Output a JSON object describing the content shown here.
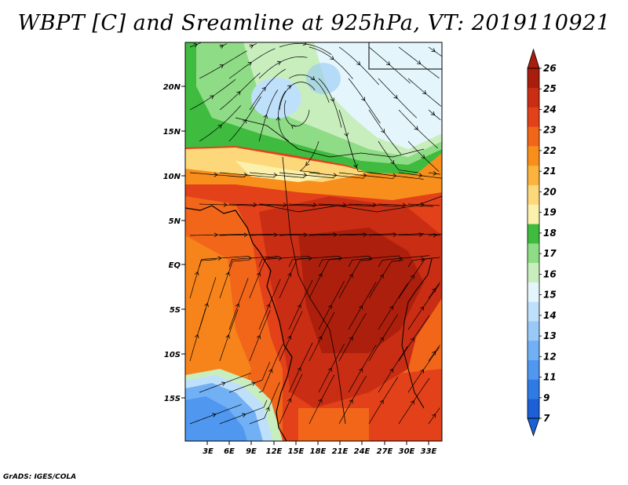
{
  "title": "WBPT [C] and Sreamline at 925hPa, VT: 2019110921",
  "footer": "GrADS: IGES/COLA",
  "map": {
    "lat_labels": [
      "20N",
      "15N",
      "10N",
      "5N",
      "EQ",
      "5S",
      "10S",
      "15S"
    ],
    "lon_labels": [
      "3E",
      "6E",
      "9E",
      "12E",
      "15E",
      "18E",
      "21E",
      "24E",
      "27E",
      "30E",
      "33E"
    ]
  },
  "colorbar": {
    "labels": [
      "7",
      "9",
      "11",
      "12",
      "13",
      "14",
      "15",
      "16",
      "17",
      "18",
      "19",
      "20",
      "21",
      "22",
      "23",
      "24",
      "25",
      "26"
    ],
    "colors": [
      "#1c5fd6",
      "#2f7be6",
      "#4f97ef",
      "#71b0f4",
      "#98c9f7",
      "#bfe0fa",
      "#e4f6fb",
      "#c9eebe",
      "#8fdc86",
      "#3fbb3f",
      "#fbf1ac",
      "#fcd87b",
      "#fbb33e",
      "#f88f1c",
      "#f2661a",
      "#e2411a",
      "#c92d14",
      "#a81d0c"
    ]
  }
}
